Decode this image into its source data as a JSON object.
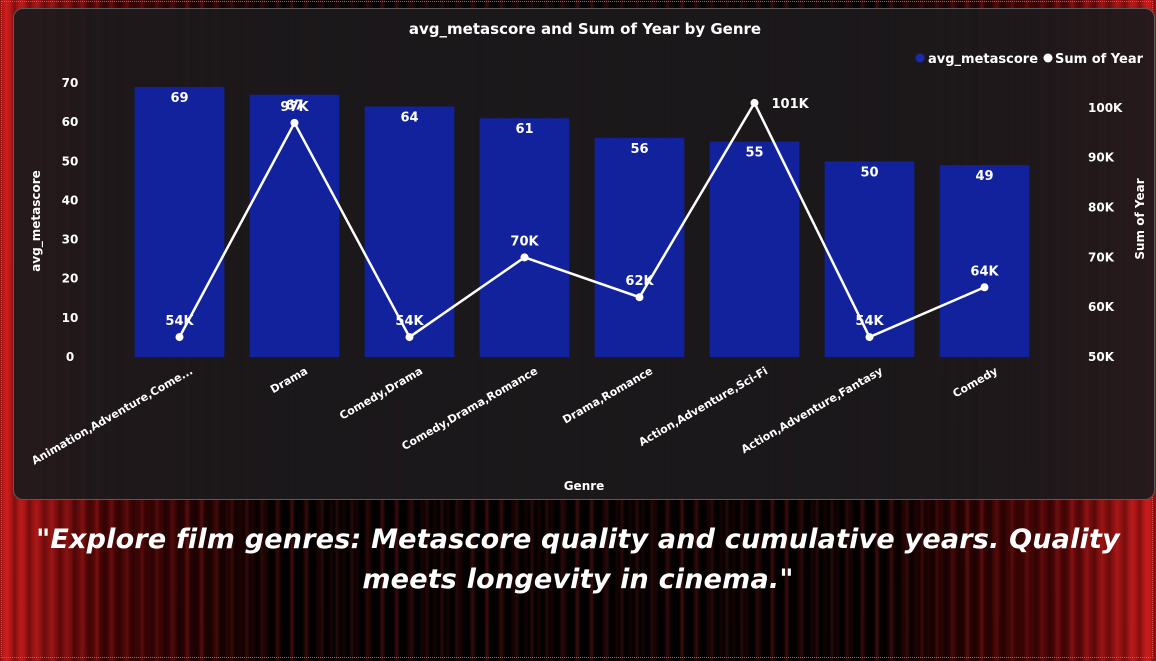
{
  "colors": {
    "bar": "#12229c",
    "line": "#ffffff",
    "legend_bar_dot": "#1a2ab0",
    "text": "#ffffff"
  },
  "chart_data": {
    "type": "bar",
    "title": "avg_metascore and Sum of Year by Genre",
    "xlabel": "Genre",
    "ylabel": "avg_metascore",
    "y2label": "Sum of Year",
    "categories": [
      "Animation,Adventure,Come...",
      "Drama",
      "Comedy,Drama",
      "Comedy,Drama,Romance",
      "Drama,Romance",
      "Action,Adventure,Sci-Fi",
      "Action,Adventure,Fantasy",
      "Comedy"
    ],
    "series": [
      {
        "name": "avg_metascore",
        "type": "bar",
        "axis": "left",
        "values": [
          69,
          67,
          64,
          61,
          56,
          55,
          50,
          49
        ],
        "labels": [
          "69",
          "67",
          "64",
          "61",
          "56",
          "55",
          "50",
          "49"
        ]
      },
      {
        "name": "Sum of Year",
        "type": "line",
        "axis": "right",
        "values": [
          54000,
          97000,
          54000,
          70000,
          62000,
          101000,
          54000,
          64000
        ],
        "labels": [
          "54K",
          "97K",
          "54K",
          "70K",
          "62K",
          "101K",
          "54K",
          "64K"
        ]
      }
    ],
    "ylim": [
      0,
      70
    ],
    "y2lim": [
      50000,
      105000
    ],
    "yticks": [
      0,
      10,
      20,
      30,
      40,
      50,
      60,
      70
    ],
    "yticklabels": [
      "0",
      "10",
      "20",
      "30",
      "40",
      "50",
      "60",
      "70"
    ],
    "y2ticks": [
      50000,
      60000,
      70000,
      80000,
      90000,
      100000
    ],
    "y2ticklabels": [
      "50K",
      "60K",
      "70K",
      "80K",
      "90K",
      "100K"
    ],
    "grid": false,
    "legend": "top-right"
  },
  "caption": {
    "text": "\"Explore film genres: Metascore quality and cumulative years. Quality meets longevity in cinema.\""
  }
}
